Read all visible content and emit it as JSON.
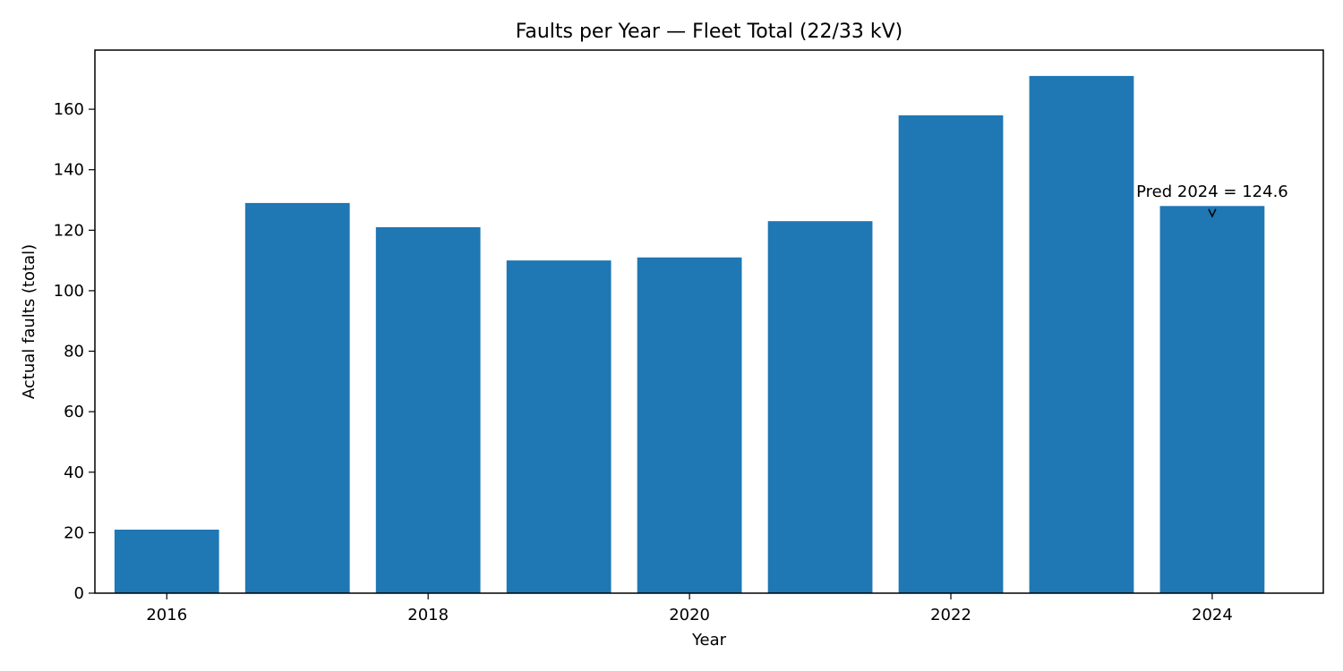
{
  "chart_data": {
    "type": "bar",
    "title": "Faults per Year — Fleet Total (22/33 kV)",
    "xlabel": "Year",
    "ylabel": "Actual faults (total)",
    "x": [
      2016,
      2017,
      2018,
      2019,
      2020,
      2021,
      2022,
      2023,
      2024
    ],
    "values": [
      21,
      129,
      121,
      110,
      111,
      123,
      158,
      171,
      128
    ],
    "xlim": [
      2015.45,
      2024.85
    ],
    "ylim": [
      0,
      179.55
    ],
    "xticks": [
      2016,
      2018,
      2020,
      2022,
      2024
    ],
    "xtick_labels": [
      "2016",
      "2018",
      "2020",
      "2022",
      "2024"
    ],
    "yticks": [
      0,
      20,
      40,
      60,
      80,
      100,
      120,
      140,
      160
    ],
    "ytick_labels": [
      "0",
      "20",
      "40",
      "60",
      "80",
      "100",
      "120",
      "140",
      "160"
    ],
    "bar_color": "#1f77b4",
    "grid": false,
    "legend": "none",
    "annotations": [
      {
        "text": "Pred 2024 = 124.6",
        "x": 2024,
        "y": 124.6
      }
    ]
  }
}
